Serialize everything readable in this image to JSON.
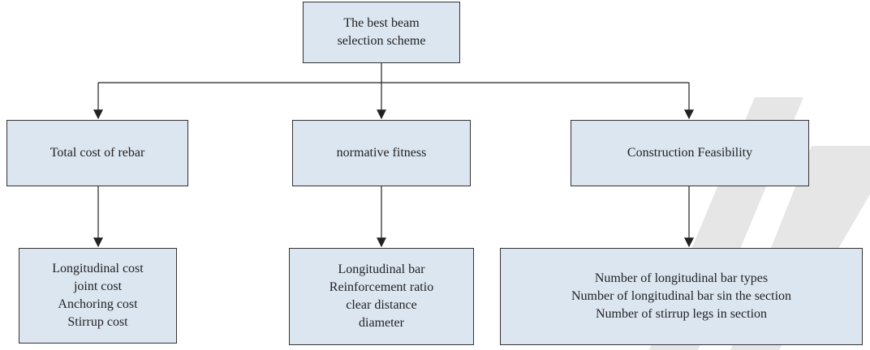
{
  "nodes": [
    {
      "lines": [
        "The best beam",
        "selection scheme"
      ]
    },
    {
      "lines": [
        "Total cost of rebar"
      ]
    },
    {
      "lines": [
        "normative fitness"
      ]
    },
    {
      "lines": [
        "Construction Feasibility"
      ]
    },
    {
      "lines": [
        "Longitudinal cost",
        "joint cost",
        "Anchoring cost",
        "Stirrup cost"
      ]
    },
    {
      "lines": [
        "Longitudinal bar",
        "Reinforcement ratio",
        "clear distance",
        "diameter"
      ]
    },
    {
      "lines": [
        "Number of longitudinal bar types",
        "Number of longitudinal bar sin the section",
        "Number of stirrup legs in section"
      ]
    }
  ]
}
